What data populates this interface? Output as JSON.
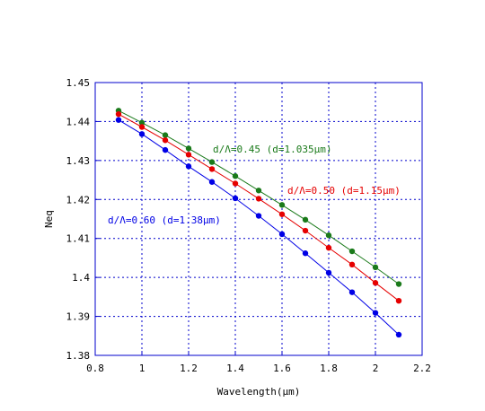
{
  "chart_data": {
    "type": "line",
    "title": "",
    "xlabel": "Wavelength(μm)",
    "ylabel": "Neq",
    "xlim": [
      0.8,
      2.2
    ],
    "ylim": [
      1.38,
      1.45
    ],
    "xticks": [
      0.8,
      1,
      1.2,
      1.4,
      1.6,
      1.8,
      2,
      2.2
    ],
    "xtick_labels": [
      "0.8",
      "1",
      "1.2",
      "1.4",
      "1.6",
      "1.8",
      "2",
      "2.2"
    ],
    "yticks": [
      1.38,
      1.39,
      1.4,
      1.41,
      1.42,
      1.43,
      1.44,
      1.45
    ],
    "ytick_labels": [
      "1.38",
      "1.39",
      "1.4",
      "1.41",
      "1.42",
      "1.43",
      "1.44",
      "1.45"
    ],
    "grid": true,
    "grid_style": "dotted",
    "axis_color": "#0000cc",
    "grid_color": "#0000cc",
    "series": [
      {
        "color": "#1a7a1a",
        "x": [
          0.9,
          1.0,
          1.1,
          1.2,
          1.3,
          1.4,
          1.5,
          1.6,
          1.7,
          1.8,
          1.9,
          2.0,
          2.1
        ],
        "y": [
          1.4428,
          1.4397,
          1.4365,
          1.4331,
          1.4296,
          1.426,
          1.4223,
          1.4186,
          1.4148,
          1.4108,
          1.4067,
          1.4026,
          1.3983
        ]
      },
      {
        "color": "#e60000",
        "x": [
          0.9,
          1.0,
          1.1,
          1.2,
          1.3,
          1.4,
          1.5,
          1.6,
          1.7,
          1.8,
          1.9,
          2.0,
          2.1
        ],
        "y": [
          1.4419,
          1.4386,
          1.4352,
          1.4315,
          1.4278,
          1.4241,
          1.4202,
          1.4162,
          1.412,
          1.4076,
          1.4033,
          1.3986,
          1.394
        ]
      },
      {
        "color": "#0000e6",
        "x": [
          0.9,
          1.0,
          1.1,
          1.2,
          1.3,
          1.4,
          1.5,
          1.6,
          1.7,
          1.8,
          1.9,
          2.0,
          2.1
        ],
        "y": [
          1.4404,
          1.4368,
          1.4327,
          1.4285,
          1.4245,
          1.4203,
          1.4158,
          1.4111,
          1.4062,
          1.4012,
          1.3962,
          1.3909,
          1.3853
        ]
      }
    ],
    "annotations": [
      {
        "text": "d/Λ=0.45 (d=1.035μm)",
        "color": "#1a7a1a"
      },
      {
        "text": "d/Λ=0.50 (d=1.15μm)",
        "color": "#e60000"
      },
      {
        "text": "d/Λ=0.60 (d=1.38μm)",
        "color": "#0000e6"
      }
    ]
  }
}
